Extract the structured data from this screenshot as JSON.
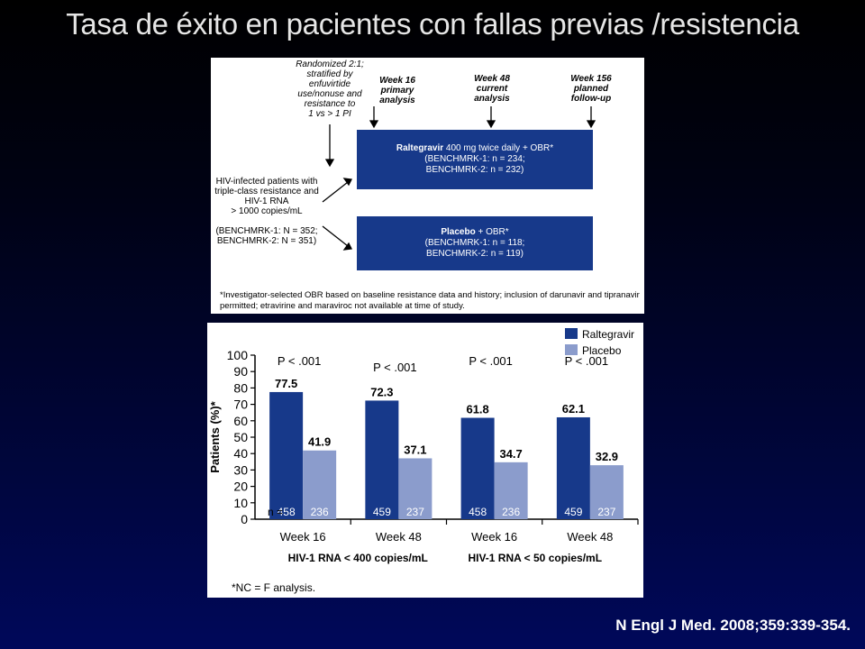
{
  "slide": {
    "title": "Tasa de éxito en pacientes con fallas previas /resistencia",
    "citation": "N Engl J Med. 2008;359:339-354."
  },
  "design": {
    "randomized": [
      "Randomized 2:1;",
      "stratified by",
      "enfuvirtide",
      "use/nonuse and",
      "resistance to",
      "1 vs > 1 PI"
    ],
    "week16": [
      "Week 16",
      "primary",
      "analysis"
    ],
    "week48": [
      "Week 48",
      "current",
      "analysis"
    ],
    "week156": [
      "Week 156",
      "planned",
      "follow-up"
    ],
    "patients": [
      "HIV-infected patients with",
      "triple-class resistance and",
      "HIV-1 RNA",
      "> 1000 copies/mL",
      "",
      "(BENCHMRK-1: N = 352;",
      "BENCHMRK-2: N = 351)"
    ],
    "arm1": {
      "name": "Raltegravir",
      "regimen": " 400 mg twice daily + OBR*",
      "line2": "(BENCHMRK-1: n = 234;",
      "line3": "BENCHMRK-2: n = 232)"
    },
    "arm2": {
      "name": "Placebo",
      "regimen": " + OBR*",
      "line2": "(BENCHMRK-1: n = 118;",
      "line3": "BENCHMRK-2: n = 119)"
    },
    "footnote": "*Investigator-selected OBR based on baseline resistance data and history; inclusion of darunavir and tipranavir permitted; etravirine and maraviroc not available at time of study."
  },
  "chart_data": {
    "type": "bar",
    "ylabel": "Patients (%)*",
    "ylim": [
      0,
      100
    ],
    "yticks": [
      0,
      10,
      20,
      30,
      40,
      50,
      60,
      70,
      80,
      90,
      100
    ],
    "categories": [
      "Week 16",
      "Week 48",
      "Week 16",
      "Week 48"
    ],
    "groups": [
      "HIV-1 RNA < 400 copies/mL",
      "HIV-1 RNA < 50 copies/mL"
    ],
    "series": [
      {
        "name": "Raltegravir",
        "color": "#17398a",
        "values": [
          77.5,
          72.3,
          61.8,
          62.1
        ],
        "n": [
          "458",
          "459",
          "458",
          "459"
        ]
      },
      {
        "name": "Placebo",
        "color": "#8b9ccc",
        "values": [
          41.9,
          37.1,
          34.7,
          32.9
        ],
        "n": [
          "236",
          "237",
          "236",
          "237"
        ]
      }
    ],
    "value_labels": [
      [
        "77.5",
        "72.3",
        "61.8",
        "62.1"
      ],
      [
        "41.9",
        "37.1",
        "34.7",
        "32.9"
      ]
    ],
    "p_values": [
      "P < .001",
      "P < .001",
      "P < .001",
      "P < .001"
    ],
    "n_label": "n =",
    "footnote": "*NC = F analysis.",
    "legend_position": "top-right"
  }
}
